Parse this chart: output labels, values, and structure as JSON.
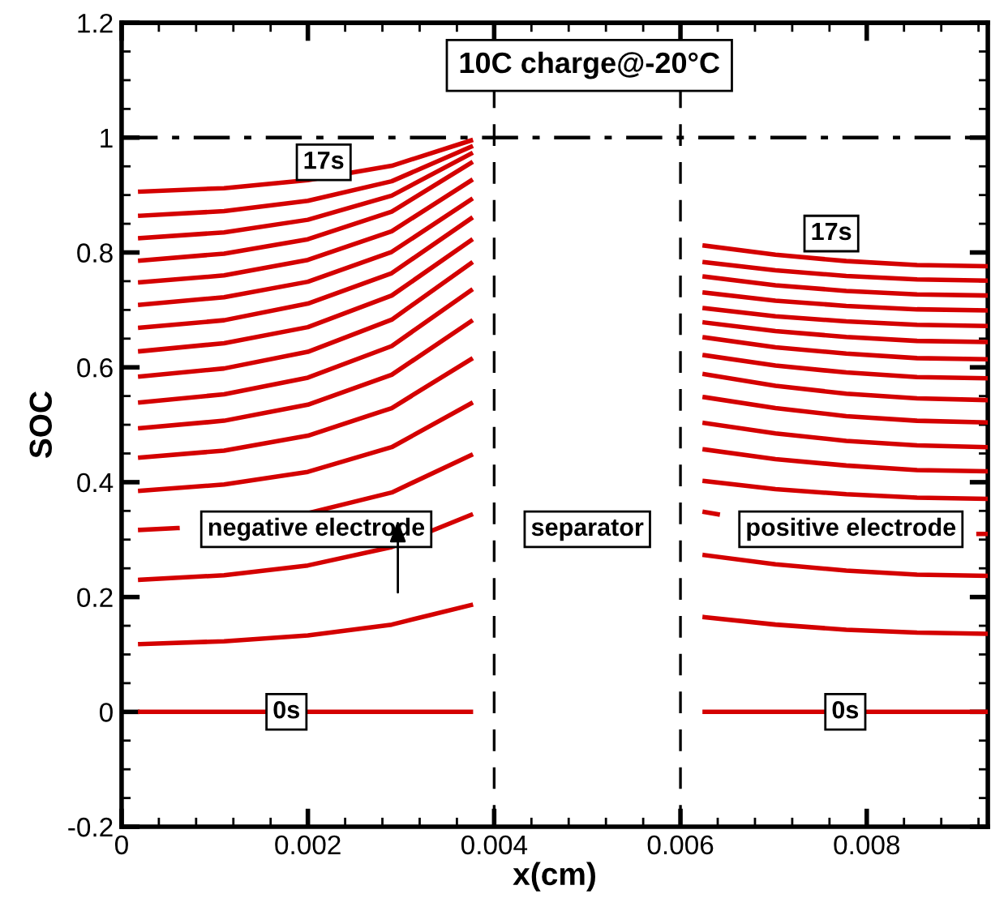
{
  "chart_data": {
    "type": "line",
    "title": "10C charge@-20°C",
    "xlabel": "x(cm)",
    "ylabel": "SOC",
    "xlim": [
      0,
      0.0093
    ],
    "xticks": [
      0,
      0.002,
      0.004,
      0.006,
      0.008
    ],
    "ylim": [
      -0.2,
      1.2
    ],
    "yticks": [
      -0.2,
      0,
      0.2,
      0.4,
      0.6,
      0.8,
      1,
      1.2
    ],
    "grid": false,
    "marker": "none",
    "line_style": "solid",
    "ref_lines": [
      {
        "axis": "y",
        "value": 1,
        "color": "#000000",
        "line_style": "dashdot"
      },
      {
        "axis": "x",
        "value": 0.004,
        "color": "#000000",
        "line_style": "dashed"
      },
      {
        "axis": "x",
        "value": 0.006,
        "color": "#000000",
        "line_style": "dashed"
      }
    ],
    "annotations": [
      {
        "text": "17s",
        "x": 0.00217,
        "y": 0.957
      },
      {
        "text": "17s",
        "x": 0.00762,
        "y": 0.833
      },
      "negative electrode",
      "separator",
      "positive electrode",
      {
        "text": "0s",
        "x": 0.00177,
        "y": 0
      },
      {
        "text": "0s",
        "x": 0.00777,
        "y": 0
      }
    ],
    "series": [
      {
        "color": "#d40000",
        "x": [
          0.0002,
          0.0011,
          0.002,
          0.0029,
          0.00375
        ],
        "values": [
          0,
          0,
          0,
          0,
          0
        ]
      },
      {
        "color": "#d40000",
        "x": [
          0.0002,
          0.0011,
          0.002,
          0.0029,
          0.00375
        ],
        "values": [
          0.118,
          0.123,
          0.133,
          0.152,
          0.186
        ]
      },
      {
        "color": "#d40000",
        "x": [
          0.0002,
          0.0011,
          0.002,
          0.0029,
          0.00375
        ],
        "values": [
          0.23,
          0.238,
          0.255,
          0.287,
          0.343
        ]
      },
      {
        "color": "#d40000",
        "x": [
          0.0002,
          0.0006,
          0.0011,
          0.002,
          0.0029,
          0.00375
        ],
        "values": [
          0.317,
          0.32,
          null,
          0.346,
          0.382,
          0.447
        ]
      },
      {
        "color": "#d40000",
        "x": [
          0.0002,
          0.0011,
          0.002,
          0.0029,
          0.00375
        ],
        "values": [
          0.385,
          0.396,
          0.418,
          0.461,
          0.537
        ]
      },
      {
        "color": "#d40000",
        "x": [
          0.0002,
          0.0011,
          0.002,
          0.0029,
          0.00375
        ],
        "values": [
          0.443,
          0.455,
          0.481,
          0.529,
          0.614
        ]
      },
      {
        "color": "#d40000",
        "x": [
          0.0002,
          0.0011,
          0.002,
          0.0029,
          0.00375
        ],
        "values": [
          0.494,
          0.507,
          0.535,
          0.587,
          0.68
        ]
      },
      {
        "color": "#d40000",
        "x": [
          0.0002,
          0.0011,
          0.002,
          0.0029,
          0.00375
        ],
        "values": [
          0.539,
          0.553,
          0.582,
          0.637,
          0.734
        ]
      },
      {
        "color": "#d40000",
        "x": [
          0.0002,
          0.0011,
          0.002,
          0.0029,
          0.00375
        ],
        "values": [
          0.584,
          0.598,
          0.627,
          0.683,
          0.781
        ]
      },
      {
        "color": "#d40000",
        "x": [
          0.0002,
          0.0011,
          0.002,
          0.0029,
          0.00375
        ],
        "values": [
          0.628,
          0.642,
          0.67,
          0.725,
          0.821
        ]
      },
      {
        "color": "#d40000",
        "x": [
          0.0002,
          0.0011,
          0.002,
          0.0029,
          0.00375
        ],
        "values": [
          0.669,
          0.682,
          0.711,
          0.764,
          0.859
        ]
      },
      {
        "color": "#d40000",
        "x": [
          0.0002,
          0.0011,
          0.002,
          0.0029,
          0.00375
        ],
        "values": [
          0.709,
          0.722,
          0.749,
          0.801,
          0.892
        ]
      },
      {
        "color": "#d40000",
        "x": [
          0.0002,
          0.0011,
          0.002,
          0.0029,
          0.00375
        ],
        "values": [
          0.748,
          0.76,
          0.787,
          0.837,
          0.925
        ]
      },
      {
        "color": "#d40000",
        "x": [
          0.0002,
          0.0011,
          0.002,
          0.0029,
          0.00375
        ],
        "values": [
          0.786,
          0.798,
          0.823,
          0.871,
          0.956
        ]
      },
      {
        "color": "#d40000",
        "x": [
          0.0002,
          0.0011,
          0.002,
          0.0029,
          0.00375
        ],
        "values": [
          0.825,
          0.835,
          0.857,
          0.899,
          0.972
        ]
      },
      {
        "color": "#d40000",
        "x": [
          0.0002,
          0.0011,
          0.002,
          0.0029,
          0.00375
        ],
        "values": [
          0.864,
          0.872,
          0.89,
          0.924,
          0.984
        ]
      },
      {
        "color": "#d40000",
        "x": [
          0.0002,
          0.0011,
          0.002,
          0.0029,
          0.00375
        ],
        "values": [
          0.906,
          0.912,
          0.926,
          0.951,
          0.995
        ]
      },
      {
        "color": "#d40000",
        "x": [
          0.00626,
          0.00702,
          0.00778,
          0.00854,
          0.0093
        ],
        "values": [
          0,
          0,
          0,
          0,
          0
        ]
      },
      {
        "color": "#d40000",
        "x": [
          0.00626,
          0.00702,
          0.00778,
          0.00854,
          0.0093
        ],
        "values": [
          0.165,
          0.152,
          0.143,
          0.138,
          0.136
        ]
      },
      {
        "color": "#d40000",
        "x": [
          0.00626,
          0.00702,
          0.00778,
          0.00854,
          0.0093
        ],
        "values": [
          0.273,
          0.257,
          0.246,
          0.239,
          0.237
        ]
      },
      {
        "color": "#d40000",
        "x": [
          0.00626,
          0.0064,
          0.00702,
          0.00778,
          0.00854,
          0.0092,
          0.0093
        ],
        "values": [
          0.348,
          0.344,
          null,
          null,
          null,
          0.31,
          0.31
        ]
      },
      {
        "color": "#d40000",
        "x": [
          0.00626,
          0.00702,
          0.00778,
          0.00854,
          0.0093
        ],
        "values": [
          0.402,
          0.388,
          0.379,
          0.373,
          0.371
        ]
      },
      {
        "color": "#d40000",
        "x": [
          0.00626,
          0.00702,
          0.00778,
          0.00854,
          0.0093
        ],
        "values": [
          0.457,
          0.44,
          0.429,
          0.421,
          0.419
        ]
      },
      {
        "color": "#d40000",
        "x": [
          0.00626,
          0.00702,
          0.00778,
          0.00854,
          0.0093
        ],
        "values": [
          0.503,
          0.485,
          0.472,
          0.464,
          0.461
        ]
      },
      {
        "color": "#d40000",
        "x": [
          0.00626,
          0.00702,
          0.00778,
          0.00854,
          0.0093
        ],
        "values": [
          0.548,
          0.529,
          0.515,
          0.507,
          0.504
        ]
      },
      {
        "color": "#d40000",
        "x": [
          0.00626,
          0.00702,
          0.00778,
          0.00854,
          0.0093
        ],
        "values": [
          0.588,
          0.568,
          0.554,
          0.546,
          0.543
        ]
      },
      {
        "color": "#d40000",
        "x": [
          0.00626,
          0.00702,
          0.00778,
          0.00854,
          0.0093
        ],
        "values": [
          0.621,
          0.603,
          0.591,
          0.583,
          0.581
        ]
      },
      {
        "color": "#d40000",
        "x": [
          0.00626,
          0.00702,
          0.00778,
          0.00854,
          0.0093
        ],
        "values": [
          0.652,
          0.635,
          0.624,
          0.616,
          0.614
        ]
      },
      {
        "color": "#d40000",
        "x": [
          0.00626,
          0.00702,
          0.00778,
          0.00854,
          0.0093
        ],
        "values": [
          0.678,
          0.663,
          0.653,
          0.646,
          0.644
        ]
      },
      {
        "color": "#d40000",
        "x": [
          0.00626,
          0.00702,
          0.00778,
          0.00854,
          0.0093
        ],
        "values": [
          0.703,
          0.689,
          0.68,
          0.674,
          0.672
        ]
      },
      {
        "color": "#d40000",
        "x": [
          0.00626,
          0.00702,
          0.00778,
          0.00854,
          0.0093
        ],
        "values": [
          0.73,
          0.716,
          0.707,
          0.701,
          0.699
        ]
      },
      {
        "color": "#d40000",
        "x": [
          0.00626,
          0.00702,
          0.00778,
          0.00854,
          0.0093
        ],
        "values": [
          0.758,
          0.743,
          0.733,
          0.727,
          0.725
        ]
      },
      {
        "color": "#d40000",
        "x": [
          0.00626,
          0.00702,
          0.00778,
          0.00854,
          0.0093
        ],
        "values": [
          0.783,
          0.769,
          0.759,
          0.753,
          0.751
        ]
      },
      {
        "color": "#d40000",
        "x": [
          0.00626,
          0.00702,
          0.00778,
          0.00854,
          0.0093
        ],
        "values": [
          0.812,
          0.796,
          0.785,
          0.778,
          0.776
        ]
      }
    ]
  }
}
